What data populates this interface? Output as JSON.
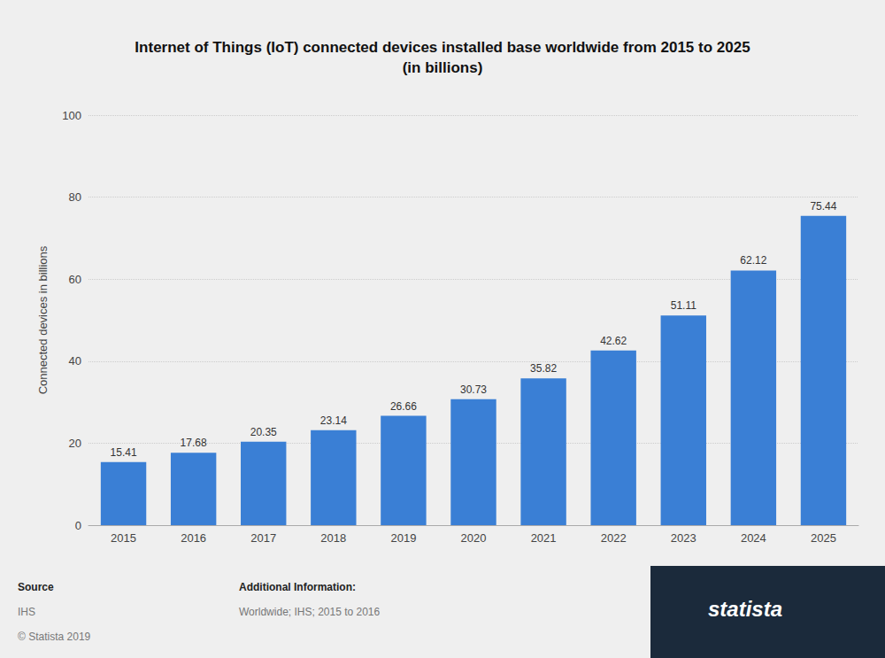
{
  "chart_data": {
    "type": "bar",
    "title": "Internet of Things (IoT) connected devices installed base worldwide from 2015 to 2025",
    "subtitle": "(in billions)",
    "y_label": "Connected devices in billions",
    "categories": [
      "2015",
      "2016",
      "2017",
      "2018",
      "2019",
      "2020",
      "2021",
      "2022",
      "2023",
      "2024",
      "2025"
    ],
    "values": [
      15.41,
      17.68,
      20.35,
      23.14,
      26.66,
      30.73,
      35.82,
      42.62,
      51.11,
      62.12,
      75.44
    ],
    "color": "#3a7fd5",
    "ylim": [
      0,
      100
    ],
    "yticks": [
      0,
      20,
      40,
      60,
      80,
      100
    ],
    "grid": true,
    "data_labels": true,
    "annotations": [
      "Source",
      "IHS",
      "© Statista 2019",
      "Additional Information:",
      "Worldwide; IHS; 2015 to 2016",
      "statista"
    ]
  }
}
